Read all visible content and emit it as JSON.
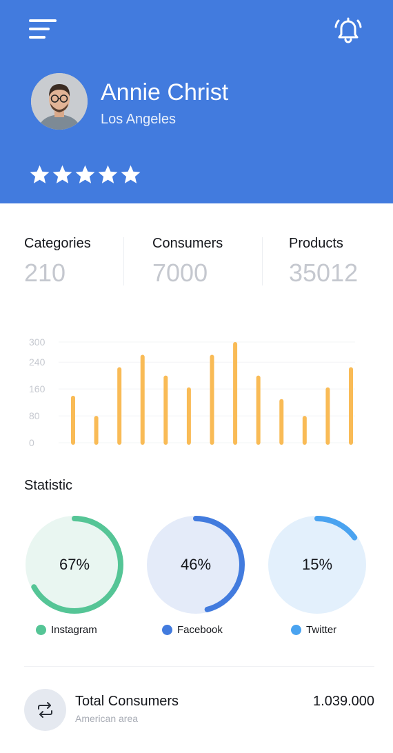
{
  "header": {
    "background_color": "#427bde",
    "menu_icon": "menu-icon",
    "notification_icon": "bell-icon"
  },
  "profile": {
    "name": "Annie Christ",
    "location": "Los Angeles",
    "rating": 5,
    "rating_max": 5
  },
  "stats": [
    {
      "label": "Categories",
      "value": "210"
    },
    {
      "label": "Consumers",
      "value": "7000"
    },
    {
      "label": "Products",
      "value": "35012"
    }
  ],
  "chart_data": {
    "type": "bar",
    "categories": [
      "",
      "",
      "",
      "",
      "",
      "",
      "",
      "",
      "",
      "",
      "",
      "",
      ""
    ],
    "values": [
      140,
      80,
      225,
      262,
      200,
      165,
      262,
      300,
      200,
      130,
      80,
      165,
      225
    ],
    "ylim": [
      0,
      300
    ],
    "yticks": [
      "300",
      "240",
      "160",
      "80",
      "0"
    ],
    "ytick_values": [
      300,
      240,
      160,
      80,
      0
    ],
    "grid": true,
    "bar_color": "#f9bb56"
  },
  "statistic": {
    "title": "Statistic",
    "items": [
      {
        "label": "Instagram",
        "percent_text": "67%",
        "percent": 67,
        "color": "#55c596",
        "bg_color": "#e9f6f1"
      },
      {
        "label": "Facebook",
        "percent_text": "46%",
        "percent": 46,
        "color": "#427bde",
        "bg_color": "#e4ebf9"
      },
      {
        "label": "Twitter",
        "percent_text": "15%",
        "percent": 15,
        "color": "#4aa3f0",
        "bg_color": "#e3f0fc"
      }
    ]
  },
  "total": {
    "icon": "repeat-icon",
    "title": "Total Consumers",
    "subtitle": "American area",
    "value": "1.039.000"
  }
}
